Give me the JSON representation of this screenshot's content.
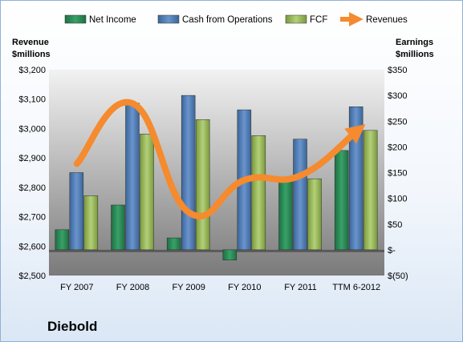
{
  "company": "Diebold",
  "chart_data": {
    "type": "bar",
    "categories": [
      "FY 2007",
      "FY 2008",
      "FY 2009",
      "FY 2010",
      "FY 2011",
      "TTM 6-2012"
    ],
    "series": [
      {
        "name": "Net Income",
        "axis": "right",
        "color": "#2e8b57",
        "values": [
          39,
          87,
          23,
          -20,
          135,
          193
        ]
      },
      {
        "name": "Cash from Operations",
        "axis": "right",
        "color": "#4f81bd",
        "values": [
          150,
          285,
          300,
          272,
          215,
          278
        ]
      },
      {
        "name": "FCF",
        "axis": "right",
        "color": "#9bbb59",
        "values": [
          105,
          225,
          253,
          222,
          138,
          232
        ]
      },
      {
        "name": "Revenues",
        "axis": "left",
        "type": "line",
        "color": "#f58a2e",
        "values": [
          2880,
          3085,
          2715,
          2825,
          2840,
          2990
        ]
      }
    ],
    "left_axis": {
      "title_line1": "Revenue",
      "title_line2": "$millions",
      "range": [
        2500,
        3200
      ],
      "ticks": [
        "$2,500",
        "$2,600",
        "$2,700",
        "$2,800",
        "$2,900",
        "$3,000",
        "$3,100",
        "$3,200"
      ]
    },
    "right_axis": {
      "title_line1": "Earnings",
      "title_line2": "$millions",
      "range": [
        -50,
        350
      ],
      "ticks": [
        "$(50)",
        "$-",
        "$50",
        "$100",
        "$150",
        "$200",
        "$250",
        "$300",
        "$350"
      ]
    },
    "legend_position": "top",
    "grid": false
  }
}
